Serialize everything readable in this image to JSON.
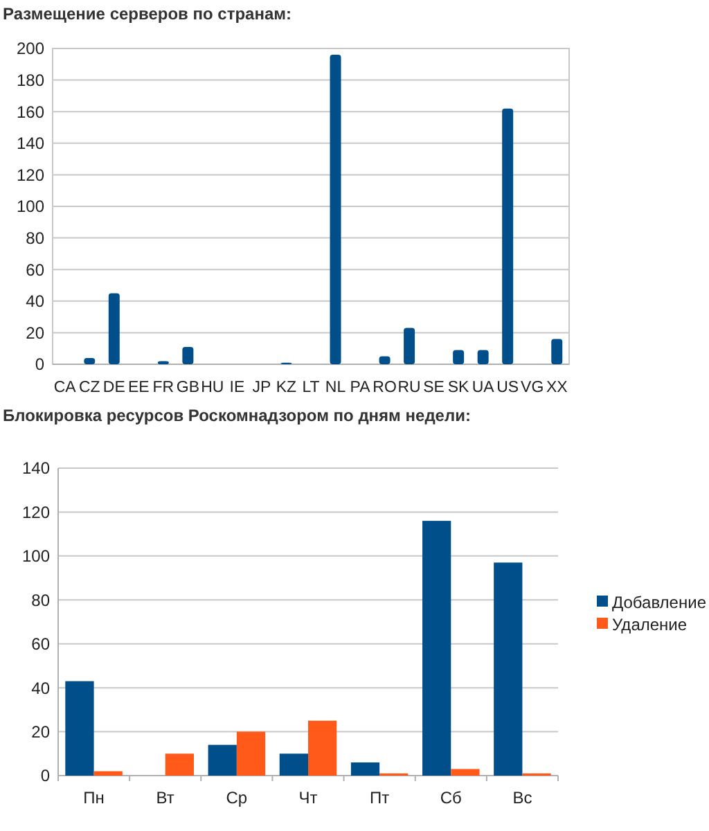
{
  "chart_data": [
    {
      "type": "bar",
      "title": "Размещение серверов по странам:",
      "categories": [
        "CA",
        "CZ",
        "DE",
        "EE",
        "FR",
        "GB",
        "HU",
        "IE",
        "JP",
        "KZ",
        "LT",
        "NL",
        "PA",
        "RO",
        "RU",
        "SE",
        "SK",
        "UA",
        "US",
        "VG",
        "XX"
      ],
      "series": [
        {
          "color": "#004f8b",
          "values": [
            0,
            4,
            45,
            0,
            2,
            11,
            0,
            0,
            0,
            1,
            0,
            196,
            0,
            5,
            23,
            0,
            9,
            9,
            162,
            0,
            16
          ]
        }
      ],
      "ylim": [
        0,
        200
      ],
      "yticks": [
        0,
        20,
        40,
        60,
        80,
        100,
        120,
        140,
        160,
        180,
        200
      ],
      "grid": "y",
      "legend": false
    },
    {
      "type": "bar",
      "title": "Блокировка ресурсов Роскомнадзором по дням недели:",
      "categories": [
        "Пн",
        "Вт",
        "Ср",
        "Чт",
        "Пт",
        "Сб",
        "Вс"
      ],
      "series": [
        {
          "name": "Добавление",
          "color": "#004f8b",
          "values": [
            43,
            0,
            14,
            10,
            6,
            116,
            97
          ]
        },
        {
          "name": "Удаление",
          "color": "#ff5a1a",
          "values": [
            2,
            10,
            20,
            25,
            1,
            3,
            1
          ]
        }
      ],
      "ylim": [
        0,
        140
      ],
      "yticks": [
        0,
        20,
        40,
        60,
        80,
        100,
        120,
        140
      ],
      "grid": "y",
      "legend": "right"
    }
  ]
}
